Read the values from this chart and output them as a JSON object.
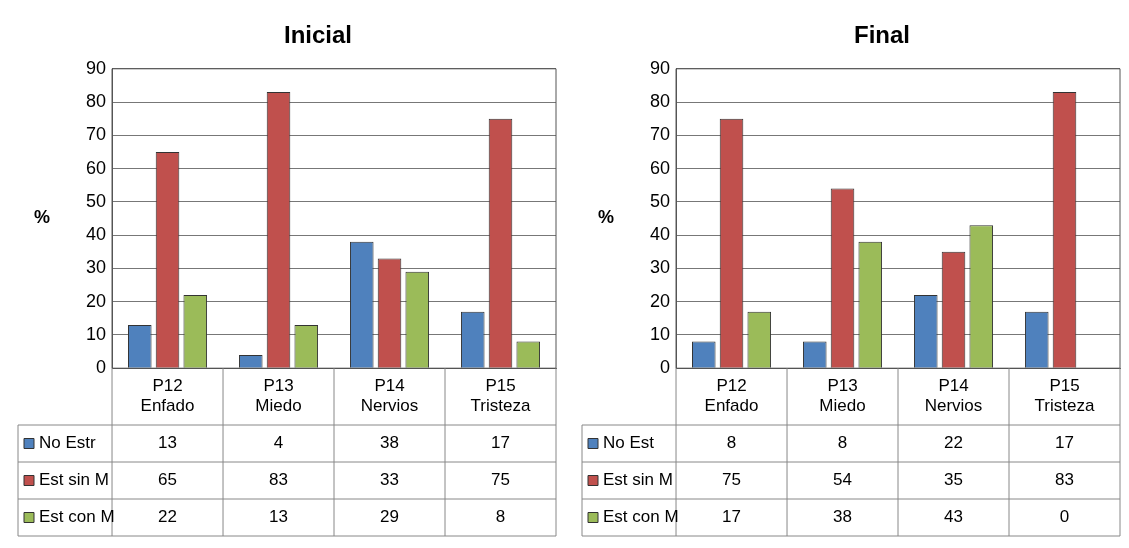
{
  "chart_data": [
    {
      "type": "bar",
      "title": "Inicial",
      "ylabel": "%",
      "categories": [
        "P12 Enfado",
        "P13 Miedo",
        "P14 Nervios",
        "P15 Tristeza"
      ],
      "series": [
        {
          "name": "No Estr",
          "color": "#4f81bd",
          "values": [
            13,
            4,
            38,
            17
          ]
        },
        {
          "name": "Est sin M",
          "color": "#c0504d",
          "values": [
            65,
            83,
            33,
            75
          ]
        },
        {
          "name": "Est con M",
          "color": "#9bbb59",
          "values": [
            22,
            13,
            29,
            8
          ]
        }
      ],
      "ylim": [
        0,
        90
      ],
      "yticks": [
        0,
        10,
        20,
        30,
        40,
        50,
        60,
        70,
        80,
        90
      ],
      "grid": "y",
      "legend": "bottom",
      "data_labels": true
    },
    {
      "type": "bar",
      "title": "Final",
      "ylabel": "%",
      "categories": [
        "P12 Enfado",
        "P13 Miedo",
        "P14 Nervios",
        "P15 Tristeza"
      ],
      "series": [
        {
          "name": "No Est",
          "color": "#4f81bd",
          "values": [
            8,
            8,
            22,
            17
          ]
        },
        {
          "name": "Est sin M",
          "color": "#c0504d",
          "values": [
            75,
            54,
            35,
            83
          ]
        },
        {
          "name": "Est con M",
          "color": "#9bbb59",
          "values": [
            17,
            38,
            43,
            0
          ]
        }
      ],
      "ylim": [
        0,
        90
      ],
      "yticks": [
        0,
        10,
        20,
        30,
        40,
        50,
        60,
        70,
        80,
        90
      ],
      "grid": "y",
      "legend": "bottom",
      "data_labels": true
    }
  ]
}
